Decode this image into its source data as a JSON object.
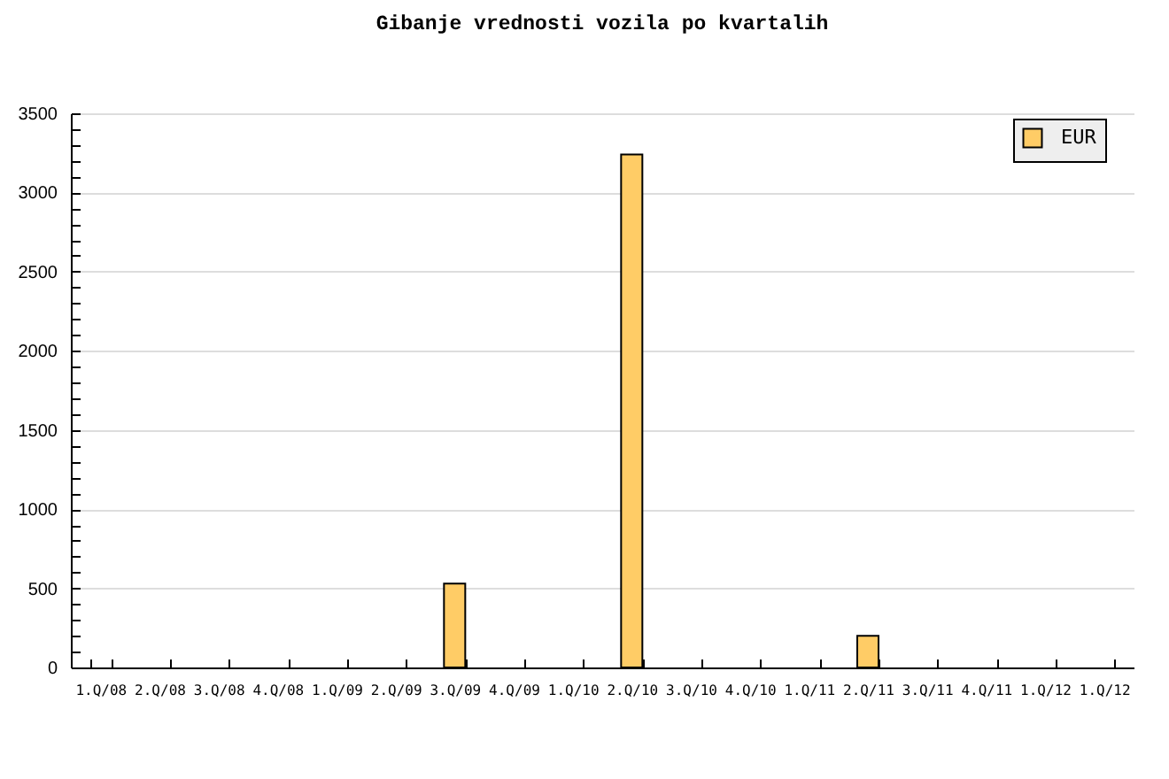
{
  "chart_data": {
    "type": "bar",
    "title": "Gibanje vrednosti vozila po kvartalih",
    "categories": [
      "1.Q/08",
      "2.Q/08",
      "3.Q/08",
      "4.Q/08",
      "1.Q/09",
      "2.Q/09",
      "3.Q/09",
      "4.Q/09",
      "1.Q/10",
      "2.Q/10",
      "3.Q/10",
      "4.Q/10",
      "1.Q/11",
      "2.Q/11",
      "3.Q/11",
      "4.Q/11",
      "1.Q/12",
      "1.Q/12"
    ],
    "series": [
      {
        "name": "EUR",
        "color": "#ffcc66",
        "values": [
          null,
          null,
          null,
          null,
          null,
          null,
          530,
          null,
          null,
          3240,
          null,
          null,
          null,
          200,
          null,
          null,
          null,
          null
        ]
      }
    ],
    "ylim": [
      0,
      3500
    ],
    "yticks": [
      0,
      {
        "value": 100,
        "label": null
      },
      {
        "value": 200,
        "label": null
      },
      {
        "value": 300,
        "label": null
      },
      {
        "value": 400,
        "label": null
      },
      500,
      {
        "value": 600,
        "label": null
      },
      {
        "value": 700,
        "label": null
      },
      {
        "value": 800,
        "label": null
      },
      {
        "value": 900,
        "label": null
      },
      1000,
      {
        "value": 1100,
        "label": null
      },
      {
        "value": 1200,
        "label": null
      },
      {
        "value": 1300,
        "label": null
      },
      {
        "value": 1400,
        "label": null
      },
      1500,
      {
        "value": 1600,
        "label": null
      },
      {
        "value": 1700,
        "label": null
      },
      {
        "value": 1800,
        "label": null
      },
      {
        "value": 1900,
        "label": null
      },
      2000,
      {
        "value": 2100,
        "label": null
      },
      {
        "value": 2200,
        "label": null
      },
      {
        "value": 2300,
        "label": null
      },
      {
        "value": 2400,
        "label": null
      },
      2500,
      {
        "value": 2600,
        "label": null
      },
      {
        "value": 2700,
        "label": null
      },
      {
        "value": 2800,
        "label": null
      },
      {
        "value": 2900,
        "label": null
      },
      3000,
      {
        "value": 3100,
        "label": null
      },
      {
        "value": 3200,
        "label": null
      },
      {
        "value": 3300,
        "label": null
      },
      {
        "value": 3400,
        "label": null
      },
      3500
    ],
    "grid": "y",
    "legend": "top right"
  }
}
